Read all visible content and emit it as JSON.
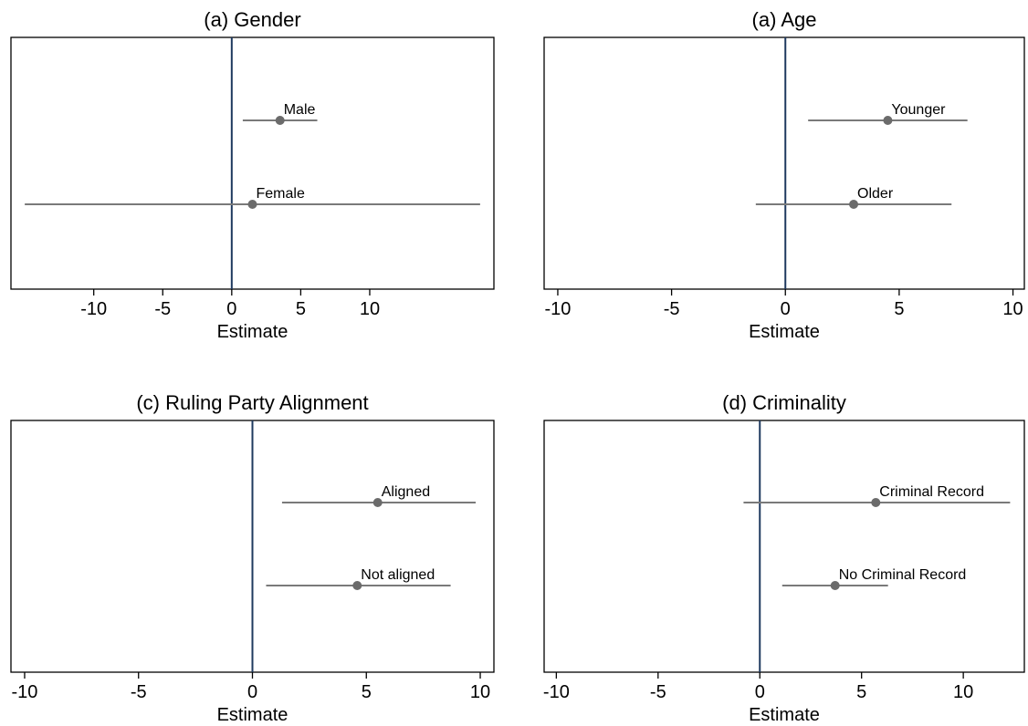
{
  "chart_data": [
    {
      "type": "scatter",
      "title": "(a) Gender",
      "xlabel": "Estimate",
      "xticks": [
        -10,
        -5,
        0,
        5,
        10
      ],
      "xlim": [
        -16,
        19
      ],
      "ref_line": 0,
      "points": [
        {
          "label": "Male",
          "estimate": 3.5,
          "ci": [
            0.8,
            6.2
          ]
        },
        {
          "label": "Female",
          "estimate": 1.5,
          "ci": [
            -15.0,
            18.0
          ]
        }
      ]
    },
    {
      "type": "scatter",
      "title": "(a) Age",
      "xlabel": "Estimate",
      "xticks": [
        -10,
        -5,
        0,
        5,
        10
      ],
      "xlim": [
        -10.6,
        10.5
      ],
      "ref_line": 0,
      "points": [
        {
          "label": "Younger",
          "estimate": 4.5,
          "ci": [
            1.0,
            8.0
          ]
        },
        {
          "label": "Older",
          "estimate": 3.0,
          "ci": [
            -1.3,
            7.3
          ]
        }
      ]
    },
    {
      "type": "scatter",
      "title": "(c) Ruling Party Alignment",
      "xlabel": "Estimate",
      "xticks": [
        -10,
        -5,
        0,
        5,
        10
      ],
      "xlim": [
        -10.6,
        10.6
      ],
      "ref_line": 0,
      "points": [
        {
          "label": "Aligned",
          "estimate": 5.5,
          "ci": [
            1.3,
            9.8
          ]
        },
        {
          "label": "Not aligned",
          "estimate": 4.6,
          "ci": [
            0.6,
            8.7
          ]
        }
      ]
    },
    {
      "type": "scatter",
      "title": "(d) Criminality",
      "xlabel": "Estimate",
      "xticks": [
        -10,
        -5,
        0,
        5,
        10
      ],
      "xlim": [
        -10.6,
        13.0
      ],
      "ref_line": 0,
      "points": [
        {
          "label": "Criminal Record",
          "estimate": 5.7,
          "ci": [
            -0.8,
            12.3
          ]
        },
        {
          "label": "No Criminal Record",
          "estimate": 3.7,
          "ci": [
            1.1,
            6.3
          ]
        }
      ]
    }
  ]
}
